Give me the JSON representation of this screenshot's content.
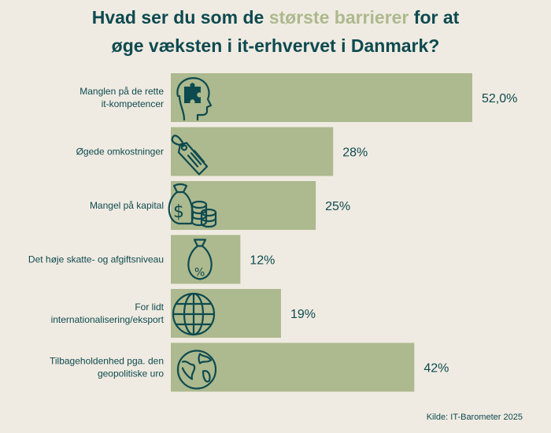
{
  "title": {
    "line1_pre": "Hvad ser du som de ",
    "line1_highlight": "største barrierer",
    "line1_post": " for at",
    "line2": "øge væksten i it-erhvervet i Danmark?"
  },
  "colors": {
    "bar": "#adb98e",
    "text": "#0d4a4f",
    "highlight": "#adb98e",
    "background": "#f0ebe2"
  },
  "chart_data": {
    "type": "bar",
    "orientation": "horizontal",
    "categories": [
      [
        "Manglen på de rette",
        "it-kompetencer"
      ],
      [
        "Øgede omkostninger"
      ],
      [
        "Mangel på kapital"
      ],
      [
        "Det høje skatte- og afgiftsniveau"
      ],
      [
        "For lidt",
        "internationalisering/eksport"
      ],
      [
        "Tilbageholdenhed pga. den",
        "geopolitiske uro"
      ]
    ],
    "values": [
      52.0,
      28,
      25,
      12,
      19,
      42
    ],
    "value_labels": [
      "52,0%",
      "28%",
      "25%",
      "12%",
      "19%",
      "42%"
    ],
    "icons": [
      "head-puzzle-icon",
      "price-tag-icon",
      "money-bag-coins-icon",
      "percent-bag-icon",
      "globe-icon",
      "earth-icon"
    ],
    "xlim": [
      0,
      52
    ],
    "grid": false,
    "legend": "none"
  },
  "source": "Kilde: IT-Barometer 2025"
}
